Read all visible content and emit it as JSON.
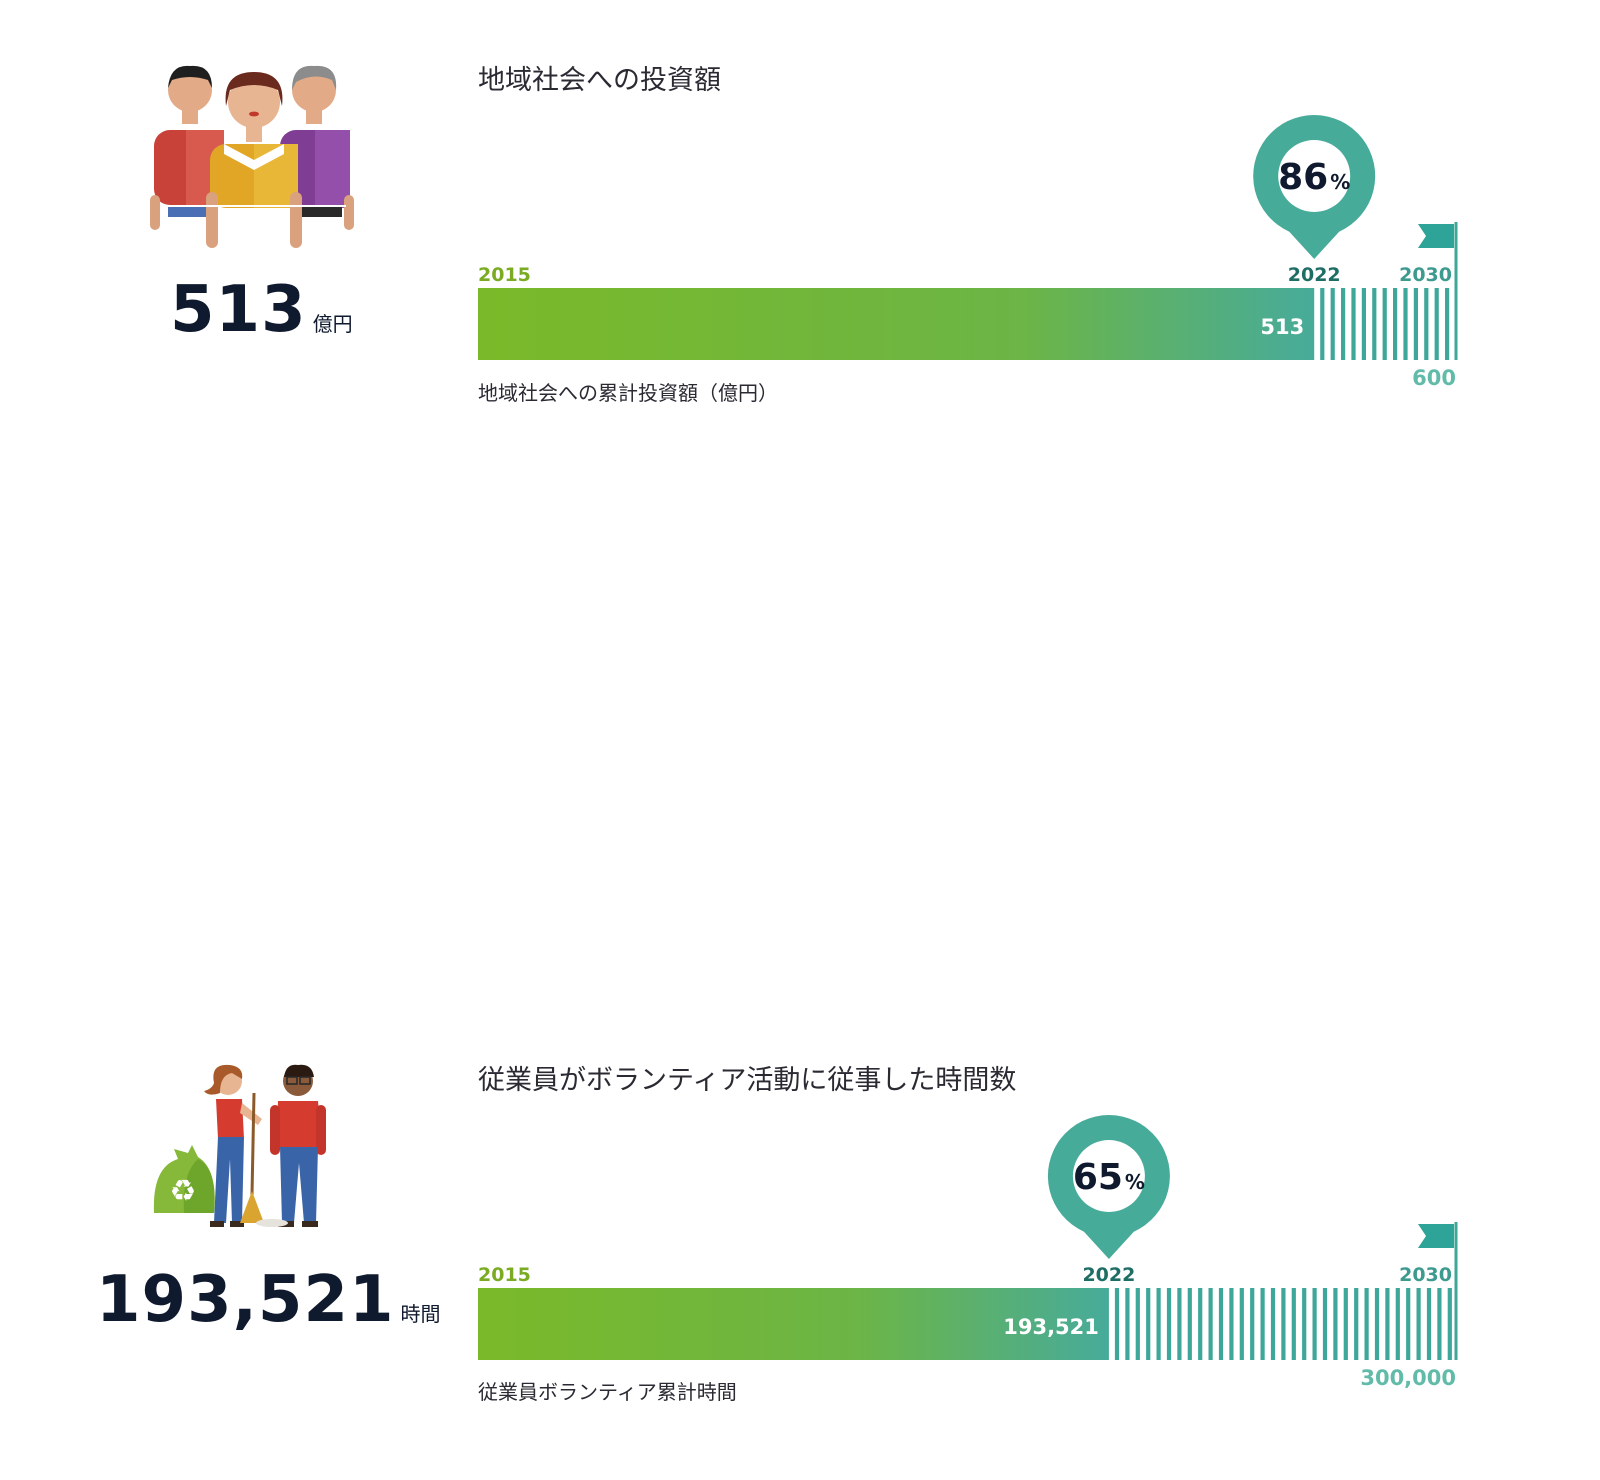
{
  "chart_data": [
    {
      "type": "bar",
      "title": "地域社会への投資額",
      "xlabel": "地域社会への累計投資額（億円）",
      "start_label": "2015",
      "current_label": "2022",
      "target_label": "2030",
      "value": 513,
      "value_label": "513",
      "target": 600,
      "target_label_value": "600",
      "percent_number": "86",
      "percent_unit": "%",
      "headline_value": "513",
      "headline_unit": "億円"
    },
    {
      "type": "bar",
      "title": "従業員がボランティア活動に従事した時間数",
      "xlabel": "従業員ボランティア累計時間",
      "start_label": "2015",
      "current_label": "2022",
      "target_label": "2030",
      "value": 193521,
      "value_label": "193,521",
      "target": 300000,
      "target_label_value": "300,000",
      "percent_number": "65",
      "percent_unit": "%",
      "headline_value": "193,521",
      "headline_unit": "時間"
    }
  ],
  "colors": {
    "bar_start": "#7ab929",
    "bar_end": "#47ab9a",
    "teal": "#3ea799",
    "year_green": "#7aab22",
    "year_dark": "#1f6e66",
    "target_label": "#62bba9",
    "text_dark": "#101a2e"
  }
}
